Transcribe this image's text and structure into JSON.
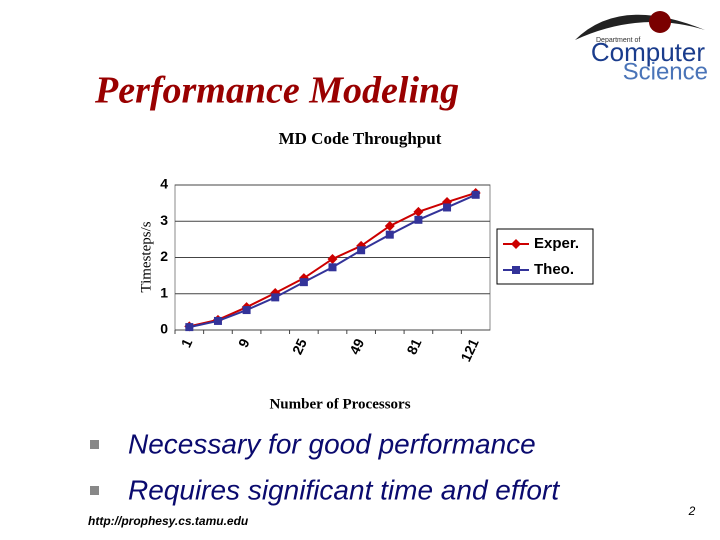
{
  "slide_title": "Performance Modeling",
  "logo": {
    "line1": "Department of",
    "line2": "Computer",
    "line3": "Science"
  },
  "bullets": [
    "Necessary for good performance",
    "Requires significant time and effort"
  ],
  "footer_url": "http://prophesy.cs.tamu.edu",
  "page_number": "2",
  "chart_data": {
    "type": "line",
    "title": "MD Code Throughput",
    "x_label": "Number of Processors",
    "y_label": "Timesteps/s",
    "categories": [
      "1",
      null,
      "9",
      null,
      "25",
      null,
      "49",
      null,
      "81",
      null,
      "121"
    ],
    "series": [
      {
        "name": "Exper.",
        "color": "#cc0000",
        "marker": "diamond",
        "values": [
          0.1,
          0.28,
          0.63,
          1.02,
          1.43,
          1.96,
          2.32,
          2.87,
          3.26,
          3.53,
          3.78
        ]
      },
      {
        "name": "Theo.",
        "color": "#333399",
        "marker": "square",
        "values": [
          0.08,
          0.25,
          0.55,
          0.9,
          1.32,
          1.73,
          2.2,
          2.63,
          3.04,
          3.38,
          3.73
        ]
      }
    ],
    "ylim": [
      0,
      4
    ],
    "yticks": [
      0,
      1,
      2,
      3,
      4
    ],
    "grid": true,
    "legend": "right"
  }
}
